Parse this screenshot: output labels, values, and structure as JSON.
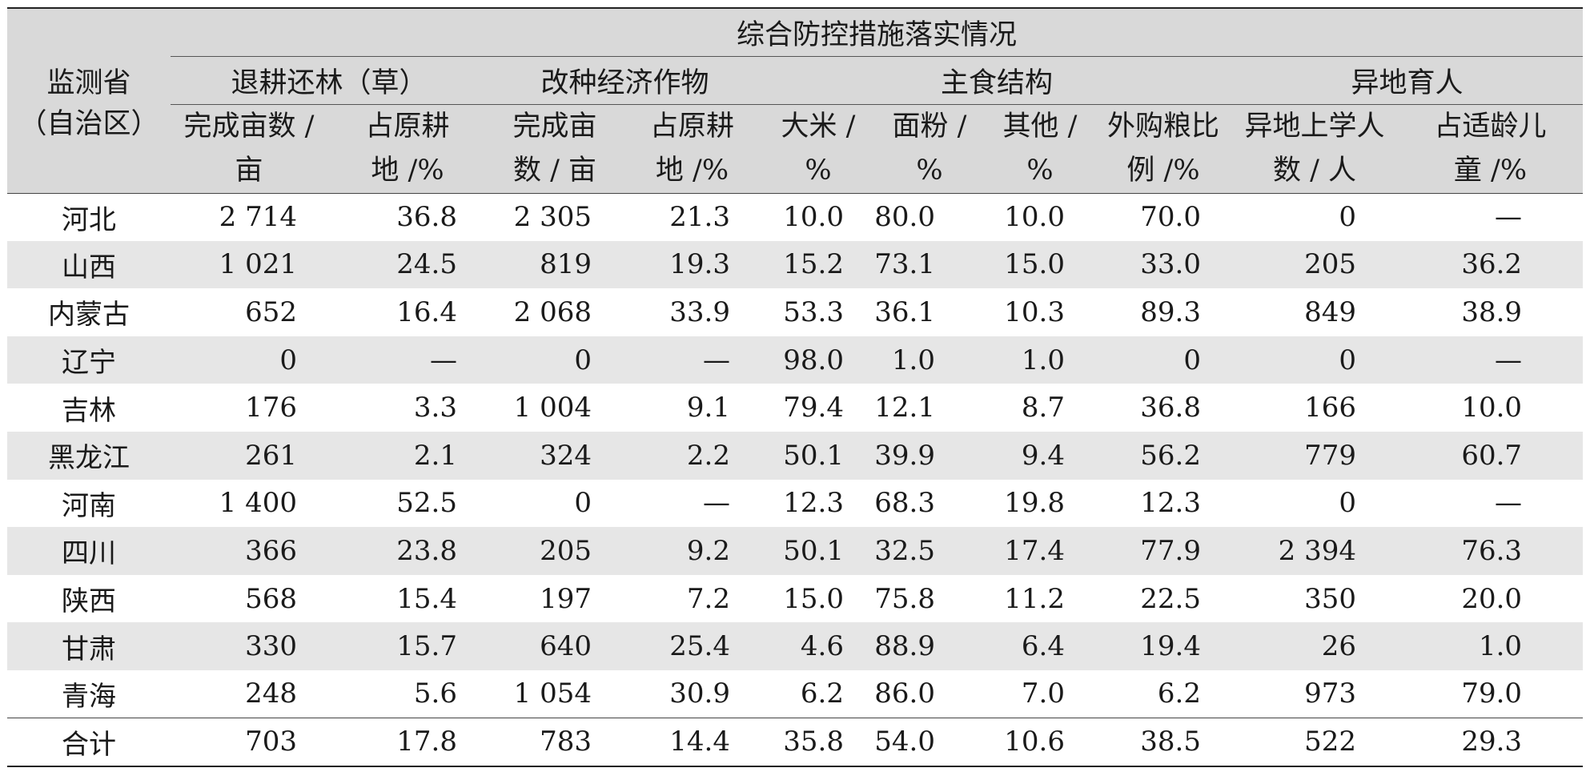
{
  "header": {
    "province_label_line1": "监测省",
    "province_label_line2": "（自治区）",
    "top_group": "综合防控措施落实情况",
    "groups": [
      "退耕还林（草）",
      "改种经济作物",
      "主食结构",
      "异地育人"
    ],
    "subcolumns": [
      [
        "完成亩数 /",
        "亩"
      ],
      [
        "占原耕",
        "地 /%"
      ],
      [
        "完成亩",
        "数 / 亩"
      ],
      [
        "占原耕",
        "地 /%"
      ],
      [
        "大米 /",
        "%"
      ],
      [
        "面粉 /",
        "%"
      ],
      [
        "其他 /",
        "%"
      ],
      [
        "外购粮比",
        "例 /%"
      ],
      [
        "异地上学人",
        "数 / 人"
      ],
      [
        "占适龄儿",
        "童 /%"
      ]
    ]
  },
  "rows": [
    {
      "province": "河北",
      "values": [
        "2 714",
        "36.8",
        "2 305",
        "21.3",
        "10.0",
        "80.0",
        "10.0",
        "70.0",
        "0",
        "—"
      ]
    },
    {
      "province": "山西",
      "values": [
        "1 021",
        "24.5",
        "819",
        "19.3",
        "15.2",
        "73.1",
        "15.0",
        "33.0",
        "205",
        "36.2"
      ]
    },
    {
      "province": "内蒙古",
      "values": [
        "652",
        "16.4",
        "2 068",
        "33.9",
        "53.3",
        "36.1",
        "10.3",
        "89.3",
        "849",
        "38.9"
      ]
    },
    {
      "province": "辽宁",
      "values": [
        "0",
        "—",
        "0",
        "—",
        "98.0",
        "1.0",
        "1.0",
        "0",
        "0",
        "—"
      ]
    },
    {
      "province": "吉林",
      "values": [
        "176",
        "3.3",
        "1 004",
        "9.1",
        "79.4",
        "12.1",
        "8.7",
        "36.8",
        "166",
        "10.0"
      ]
    },
    {
      "province": "黑龙江",
      "values": [
        "261",
        "2.1",
        "324",
        "2.2",
        "50.1",
        "39.9",
        "9.4",
        "56.2",
        "779",
        "60.7"
      ]
    },
    {
      "province": "河南",
      "values": [
        "1 400",
        "52.5",
        "0",
        "—",
        "12.3",
        "68.3",
        "19.8",
        "12.3",
        "0",
        "—"
      ]
    },
    {
      "province": "四川",
      "values": [
        "366",
        "23.8",
        "205",
        "9.2",
        "50.1",
        "32.5",
        "17.4",
        "77.9",
        "2 394",
        "76.3"
      ]
    },
    {
      "province": "陕西",
      "values": [
        "568",
        "15.4",
        "197",
        "7.2",
        "15.0",
        "75.8",
        "11.2",
        "22.5",
        "350",
        "20.0"
      ]
    },
    {
      "province": "甘肃",
      "values": [
        "330",
        "15.7",
        "640",
        "25.4",
        "4.6",
        "88.9",
        "6.4",
        "19.4",
        "26",
        "1.0"
      ]
    },
    {
      "province": "青海",
      "values": [
        "248",
        "5.6",
        "1 054",
        "30.9",
        "6.2",
        "86.0",
        "7.0",
        "6.2",
        "973",
        "79.0"
      ]
    }
  ],
  "total": {
    "province": "合计",
    "values": [
      "703",
      "17.8",
      "783",
      "14.4",
      "35.8",
      "54.0",
      "10.6",
      "38.5",
      "522",
      "29.3"
    ]
  },
  "colors": {
    "header_bg": "#d9d9d9",
    "stripe_bg": "#e6e6e6",
    "rule": "#222222"
  }
}
